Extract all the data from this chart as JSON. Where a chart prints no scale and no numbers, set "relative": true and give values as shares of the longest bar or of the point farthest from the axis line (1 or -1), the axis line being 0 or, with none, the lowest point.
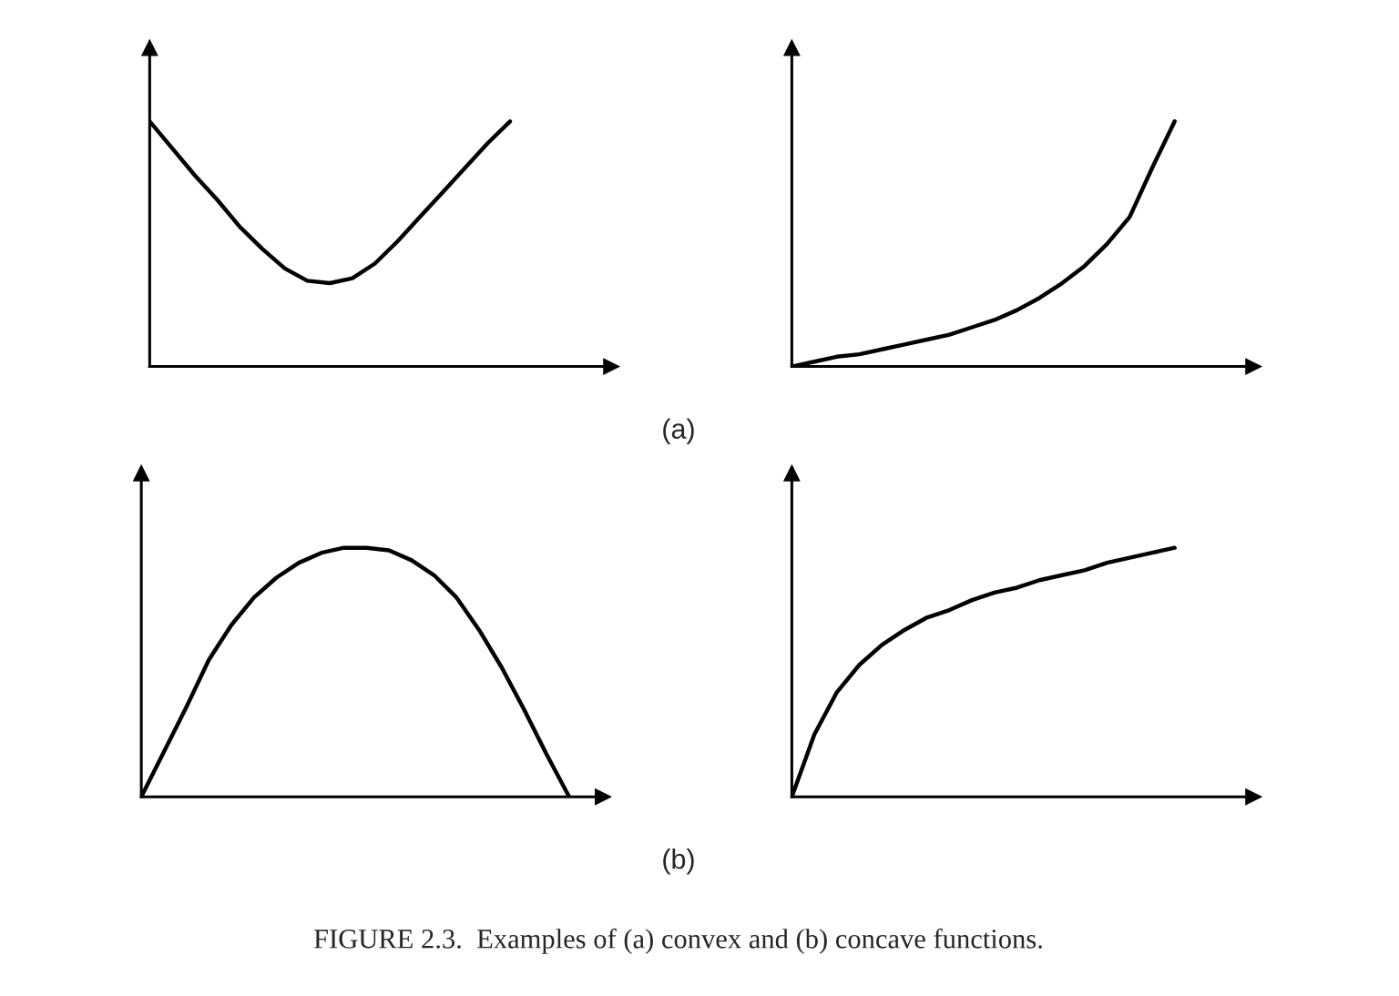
{
  "chart_data": [
    {
      "type": "line",
      "relative": true,
      "categories": [
        null,
        null,
        null,
        null,
        null,
        null,
        null,
        null,
        null,
        null,
        null,
        null,
        null,
        null,
        null,
        null,
        null,
        null,
        null,
        null,
        null
      ],
      "series": [
        {
          "color": "#000000",
          "values": [
            1,
            0.89,
            0.78,
            0.68,
            0.57,
            0.48,
            0.4,
            0.35,
            0.34,
            0.36,
            0.42,
            0.51,
            0.61,
            0.71,
            0.81,
            0.91,
            1,
            null,
            null,
            null,
            null
          ]
        }
      ],
      "annotations": [
        "(a)"
      ]
    },
    {
      "type": "line",
      "relative": true,
      "categories": [
        null,
        null,
        null,
        null,
        null,
        null,
        null,
        null,
        null,
        null,
        null,
        null,
        null,
        null,
        null,
        null,
        null,
        null,
        null,
        null,
        null
      ],
      "series": [
        {
          "color": "#000000",
          "values": [
            0,
            0.02,
            0.04,
            0.05,
            0.07,
            0.09,
            0.11,
            0.13,
            0.16,
            0.19,
            0.23,
            0.28,
            0.34,
            0.41,
            0.5,
            0.61,
            0.81,
            1,
            null,
            null,
            null
          ]
        }
      ]
    },
    {
      "type": "line",
      "relative": true,
      "categories": [
        null,
        null,
        null,
        null,
        null,
        null,
        null,
        null,
        null,
        null,
        null,
        null,
        null,
        null,
        null,
        null,
        null,
        null,
        null,
        null,
        null
      ],
      "series": [
        {
          "color": "#000000",
          "values": [
            0,
            0.18,
            0.36,
            0.55,
            0.69,
            0.8,
            0.88,
            0.94,
            0.98,
            1,
            1,
            0.99,
            0.95,
            0.89,
            0.8,
            0.67,
            0.52,
            0.35,
            0.17,
            0,
            null
          ]
        }
      ],
      "annotations": [
        "(b)",
        "FIGURE 2.3.  Examples of (a) convex and (b) concave functions."
      ]
    },
    {
      "type": "line",
      "relative": true,
      "categories": [
        null,
        null,
        null,
        null,
        null,
        null,
        null,
        null,
        null,
        null,
        null,
        null,
        null,
        null,
        null,
        null,
        null,
        null,
        null,
        null,
        null
      ],
      "series": [
        {
          "color": "#000000",
          "values": [
            0,
            0.25,
            0.42,
            0.53,
            0.61,
            0.67,
            0.72,
            0.75,
            0.79,
            0.82,
            0.84,
            0.87,
            0.89,
            0.91,
            0.94,
            0.96,
            0.98,
            1,
            null,
            null,
            null
          ]
        }
      ]
    }
  ]
}
